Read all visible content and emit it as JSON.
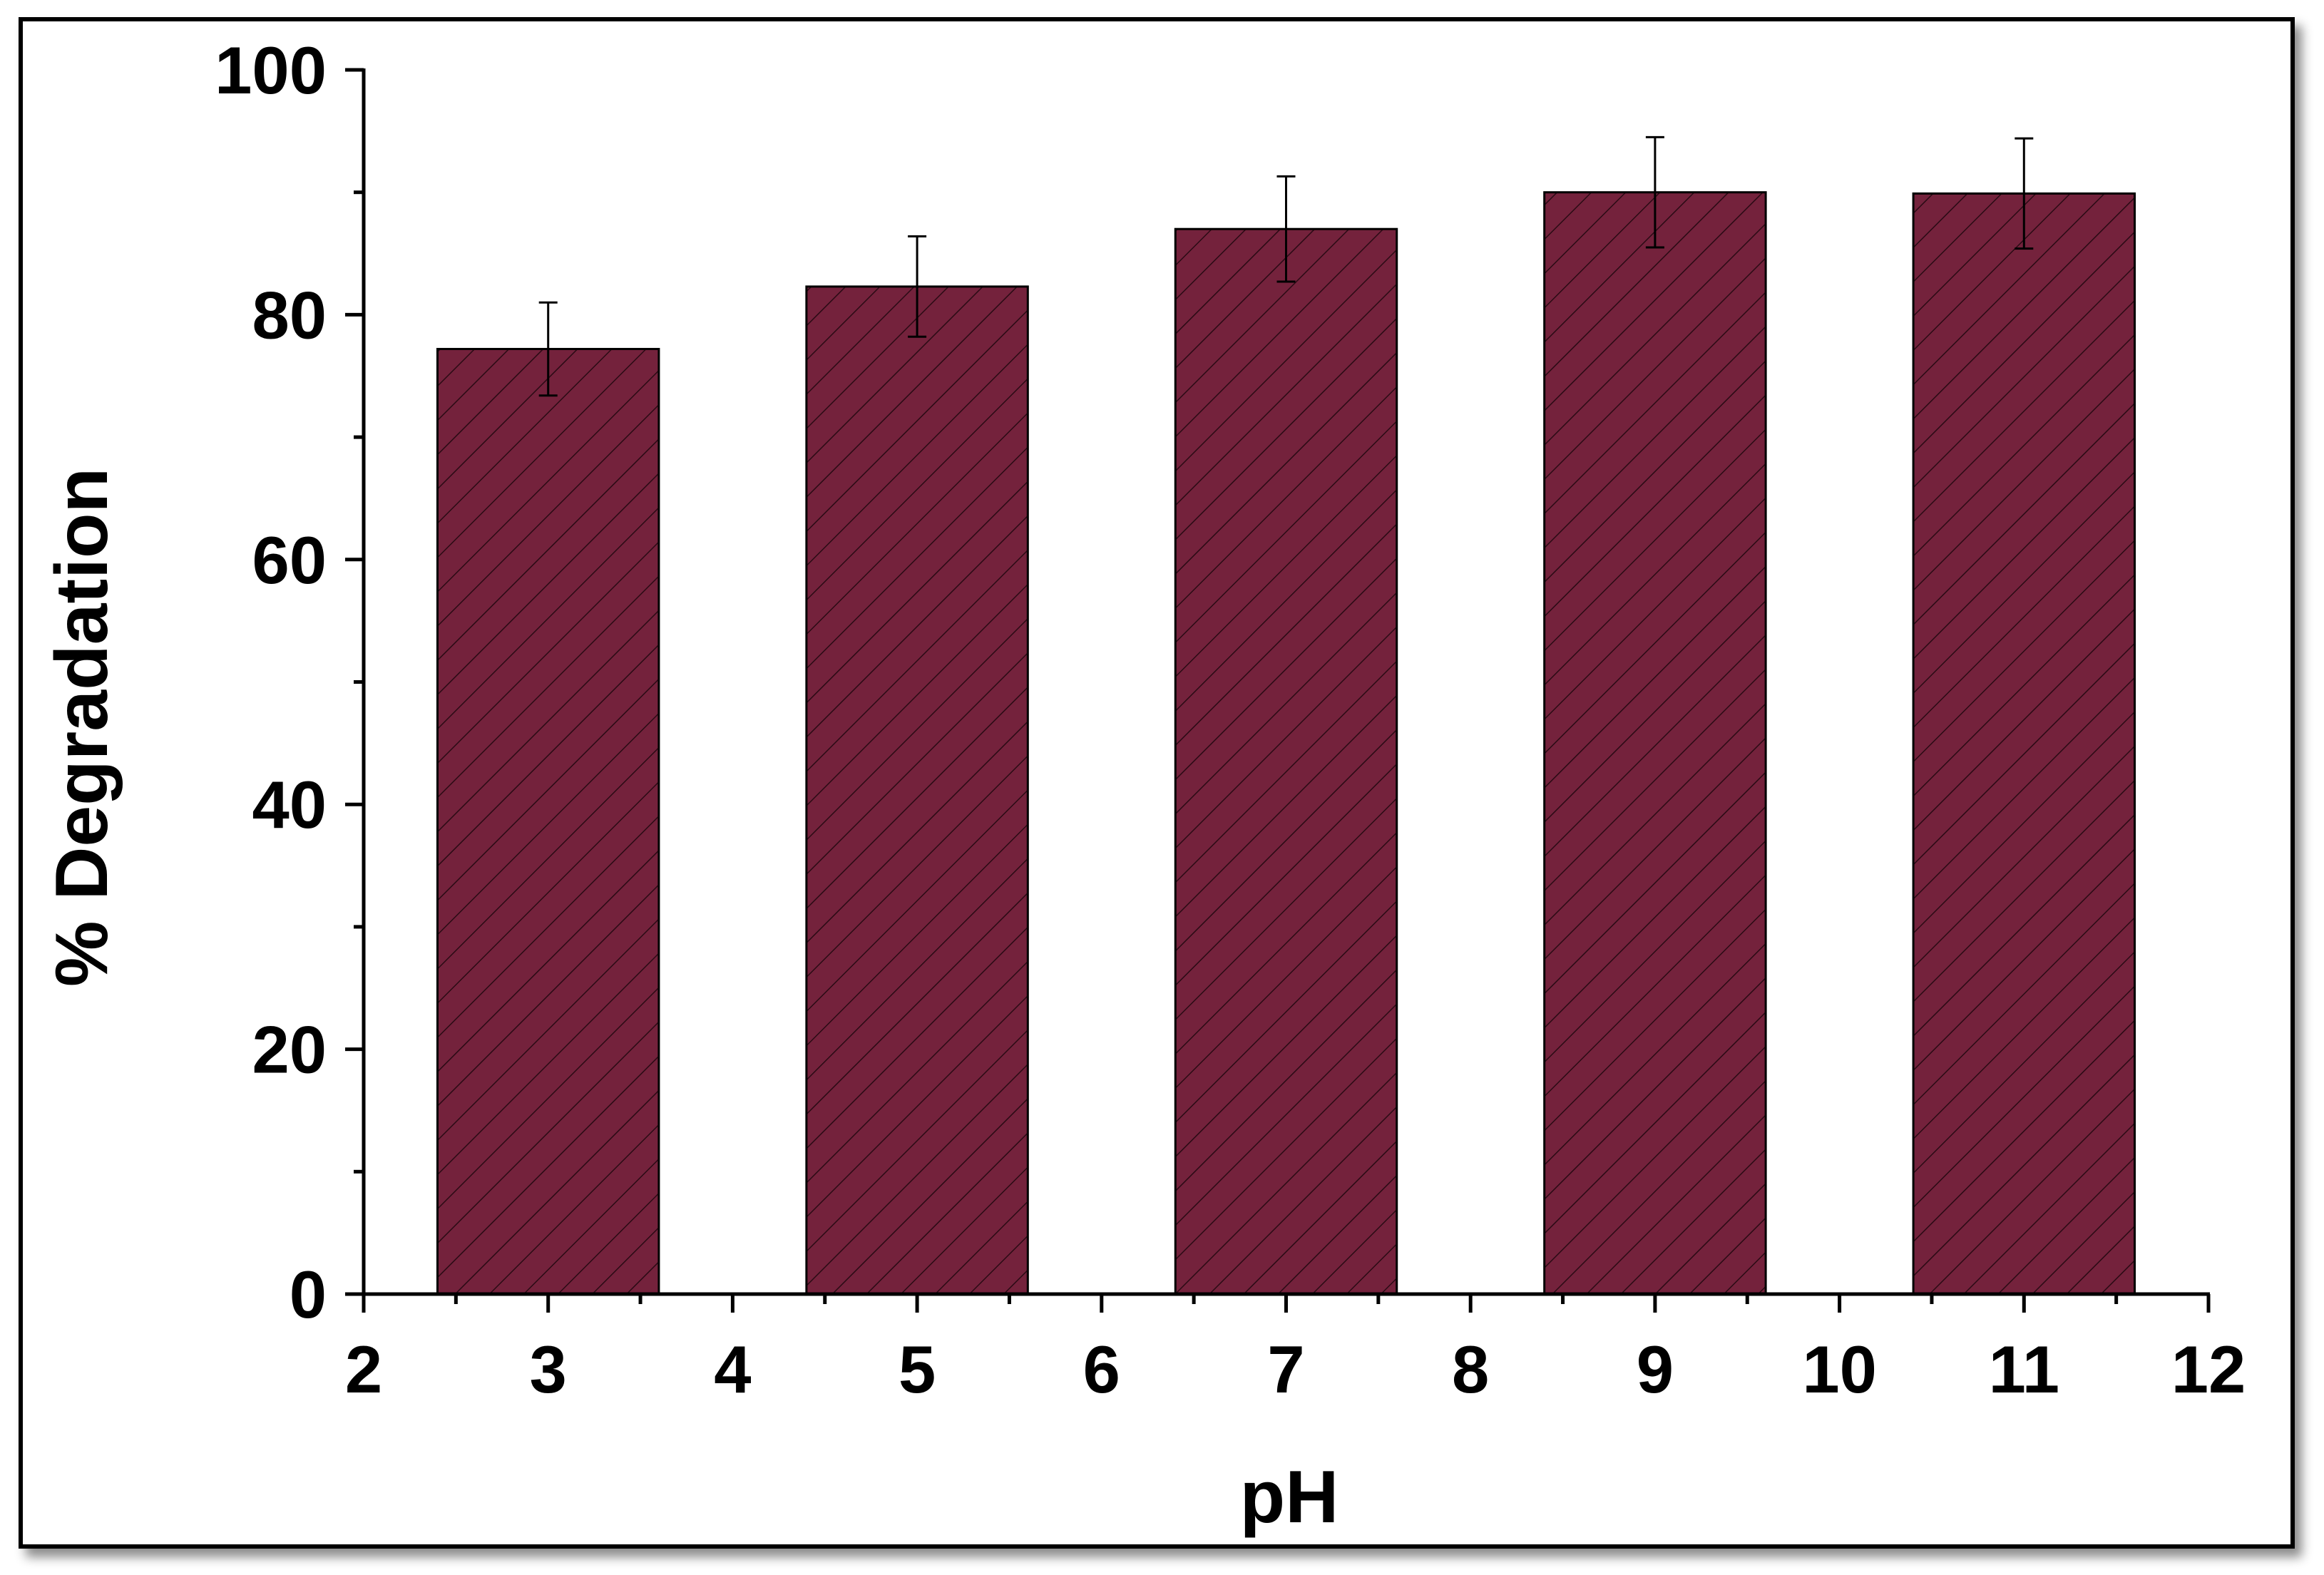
{
  "chart_data": {
    "type": "bar",
    "xlabel": "pH",
    "ylabel": "% Degradation",
    "xlim": [
      2,
      12
    ],
    "ylim": [
      0,
      100
    ],
    "x_ticks": [
      2,
      3,
      4,
      5,
      6,
      7,
      8,
      9,
      10,
      11,
      12
    ],
    "y_ticks": [
      0,
      20,
      40,
      60,
      80,
      100
    ],
    "grid": false,
    "bar_color": "#74223c",
    "bar_hatch": "diagonal",
    "x": [
      3,
      5,
      7,
      9,
      11
    ],
    "values": [
      77.2,
      82.3,
      87.0,
      90.0,
      89.9
    ],
    "errors": [
      3.8,
      4.1,
      4.3,
      4.5,
      4.5
    ]
  }
}
